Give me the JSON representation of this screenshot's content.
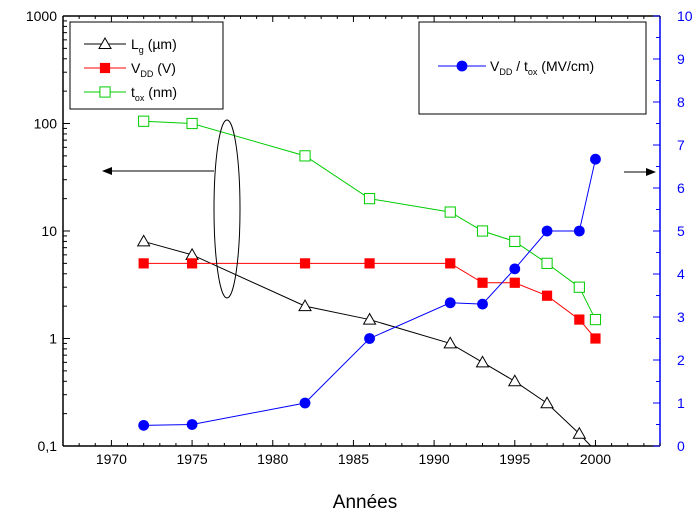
{
  "chart_data": {
    "type": "line",
    "xlabel": "Années",
    "x_axis": {
      "range": [
        1967,
        2004
      ],
      "ticks": [
        1970,
        1975,
        1980,
        1985,
        1990,
        1995,
        2000
      ],
      "tick_labels": [
        "1970",
        "1975",
        "1980",
        "1985",
        "1990",
        "1995",
        "2000"
      ]
    },
    "y_left_axis": {
      "scale": "log",
      "range": [
        0.1,
        1000
      ],
      "ticks": [
        0.1,
        1,
        10,
        100,
        1000
      ],
      "tick_labels": [
        "0,1",
        "1",
        "10",
        "100",
        "1000"
      ]
    },
    "y_right_axis": {
      "scale": "linear",
      "range": [
        0,
        10
      ],
      "ticks": [
        0,
        1,
        2,
        3,
        4,
        5,
        6,
        7,
        8,
        9,
        10
      ],
      "tick_labels": [
        "0",
        "1",
        "2",
        "3",
        "4",
        "5",
        "6",
        "7",
        "8",
        "9",
        "10"
      ],
      "color": "#0000ff"
    },
    "grid": false,
    "legend_left": {
      "placement": "top-left",
      "entries": [
        {
          "series": 0,
          "main": "L",
          "sub": "g",
          "unit": "(µm)"
        },
        {
          "series": 1,
          "main": "V",
          "sub": "DD",
          "unit": "(V)"
        },
        {
          "series": 2,
          "main": "t",
          "sub": "ox",
          "unit": "(nm)"
        }
      ]
    },
    "legend_right": {
      "placement": "top-right",
      "entry": {
        "series": 3,
        "main1": "V",
        "sub1": "DD",
        "sep": "/",
        "main2": "t",
        "sub2": "ox",
        "unit": "(MV/cm)"
      }
    },
    "series": [
      {
        "name": "Lg (µm)",
        "axis": "left",
        "color": "#000000",
        "marker": "open-triangle",
        "x": [
          1972,
          1975,
          1982,
          1986,
          1991,
          1993,
          1995,
          1997,
          1999,
          2000
        ],
        "values": [
          8,
          6,
          2,
          1.5,
          0.9,
          0.6,
          0.4,
          0.25,
          0.13,
          0.09
        ]
      },
      {
        "name": "VDD (V)",
        "axis": "left",
        "color": "#ff0000",
        "marker": "filled-square",
        "x": [
          1972,
          1975,
          1982,
          1986,
          1991,
          1993,
          1995,
          1997,
          1999,
          2000
        ],
        "values": [
          5,
          5,
          5,
          5,
          5,
          3.3,
          3.3,
          2.5,
          1.5,
          1.0
        ]
      },
      {
        "name": "tox (nm)",
        "axis": "left",
        "color": "#00cc00",
        "marker": "open-square",
        "x": [
          1972,
          1975,
          1982,
          1986,
          1991,
          1993,
          1995,
          1997,
          1999,
          2000
        ],
        "values": [
          105,
          100,
          50,
          20,
          15,
          10,
          8,
          5,
          3,
          1.5
        ]
      },
      {
        "name": "VDD / tox (MV/cm)",
        "axis": "right",
        "color": "#0000ff",
        "marker": "filled-circle",
        "x": [
          1972,
          1975,
          1982,
          1986,
          1991,
          1993,
          1995,
          1997,
          1999,
          2000
        ],
        "values": [
          0.48,
          0.5,
          1.0,
          2.5,
          3.33,
          3.3,
          4.12,
          5.0,
          5.0,
          6.67
        ]
      }
    ]
  }
}
